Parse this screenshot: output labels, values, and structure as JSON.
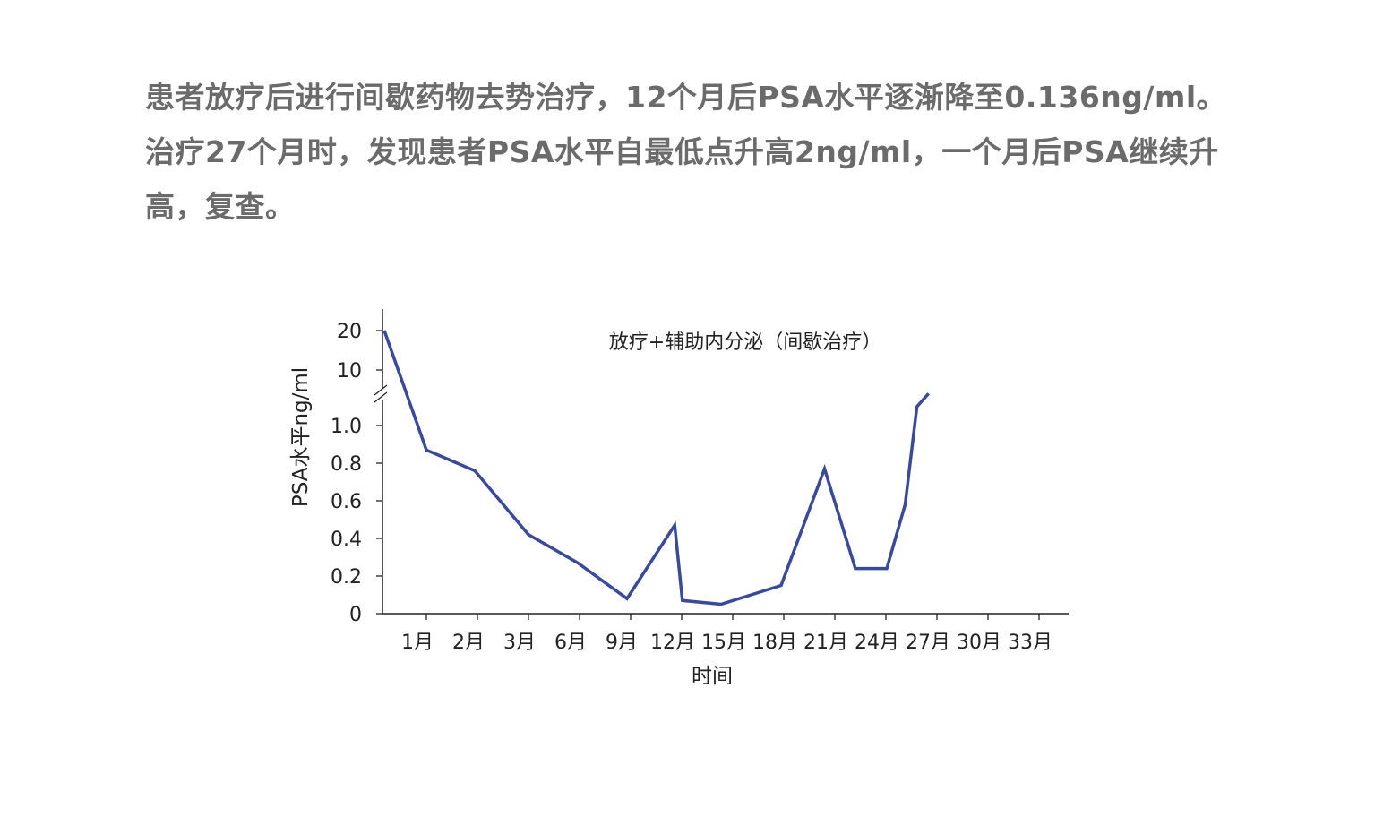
{
  "description": {
    "lines": [
      "患者放疗后进行间歇药物去势治疗，12个月后PSA水平逐渐降至0.136ng/ml。",
      "治疗27个月时，发现患者PSA水平自最低点升高2ng/ml，一个月后PSA继续升",
      "高，复查。"
    ]
  },
  "chart_data": {
    "type": "line",
    "title": "放疗+辅助内分泌（间歇治疗）",
    "xlabel": "时间",
    "ylabel": "PSA水平ng/ml",
    "x_tick_labels": [
      "1月",
      "2月",
      "3月",
      "6月",
      "9月",
      "12月",
      "15月",
      "18月",
      "21月",
      "24月",
      "27月",
      "30月",
      "33月"
    ],
    "y_tick_labels_lower": [
      "0",
      "0.2",
      "0.4",
      "0.6",
      "0.8",
      "1.0"
    ],
    "y_tick_labels_upper": [
      "10",
      "20"
    ],
    "y_axis_break": true,
    "line_color": "#3a4a9b",
    "series": [
      {
        "name": "PSA",
        "points": [
          {
            "x": 0,
            "y": 20
          },
          {
            "x": 1,
            "y": 0.87
          },
          {
            "x": 2,
            "y": 0.76
          },
          {
            "x": 3,
            "y": 0.42
          },
          {
            "x": 6,
            "y": 0.27
          },
          {
            "x": 9,
            "y": 0.08
          },
          {
            "x": 11.8,
            "y": 0.47
          },
          {
            "x": 12.3,
            "y": 0.07
          },
          {
            "x": 15,
            "y": 0.05
          },
          {
            "x": 18,
            "y": 0.15
          },
          {
            "x": 20.6,
            "y": 0.77
          },
          {
            "x": 22.3,
            "y": 0.24
          },
          {
            "x": 24,
            "y": 0.24
          },
          {
            "x": 25.1,
            "y": 0.58
          },
          {
            "x": 25.8,
            "y": 1.1
          },
          {
            "x": 26.5,
            "y": 1.17
          }
        ]
      }
    ]
  }
}
